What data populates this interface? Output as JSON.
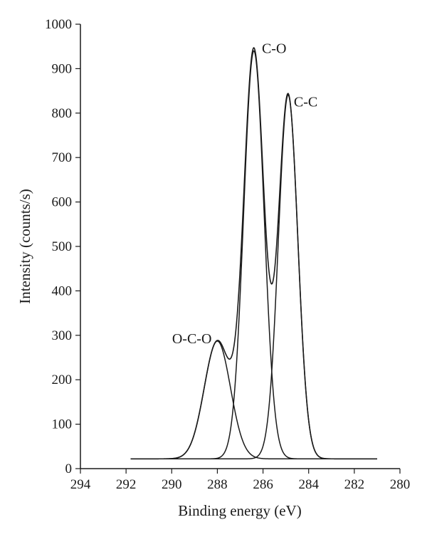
{
  "chart_data": {
    "type": "line",
    "xlabel": "Binding energy (eV)",
    "ylabel": "Intensity (counts/s)",
    "xlim": [
      294,
      280
    ],
    "ylim": [
      0,
      1000
    ],
    "x_ticks": [
      294,
      292,
      290,
      288,
      286,
      284,
      282,
      280
    ],
    "y_ticks": [
      0,
      100,
      200,
      300,
      400,
      500,
      600,
      700,
      800,
      900,
      1000
    ],
    "x_axis_reversed": true,
    "grid": false,
    "color": "#1a1a1a",
    "baseline": 22,
    "x_range": [
      291.8,
      281.0
    ],
    "components": [
      {
        "center": 288.0,
        "height": 265,
        "fwhm": 1.35,
        "label": "O-C-O"
      },
      {
        "center": 286.4,
        "height": 918,
        "fwhm": 1.05,
        "label": "C-O"
      },
      {
        "center": 284.9,
        "height": 819,
        "fwhm": 1.0,
        "label": "C-C"
      }
    ],
    "envelope_peaks": [
      {
        "x": 286.4,
        "y": 958
      },
      {
        "x": 284.9,
        "y": 845
      }
    ],
    "annotations": [
      "C-O",
      "C-C",
      "O-C-O"
    ]
  }
}
